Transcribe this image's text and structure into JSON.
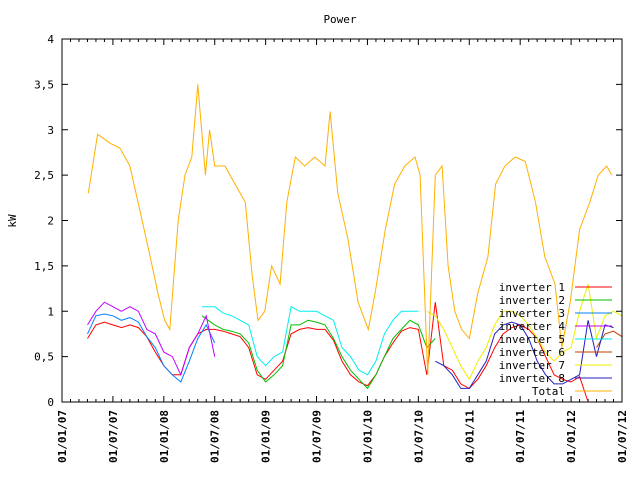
{
  "chart_data": {
    "type": "line",
    "title": "Power",
    "xlabel": "",
    "ylabel": "kW",
    "x_unit": "months since 01/01/07",
    "xlim": [
      0,
      66
    ],
    "ylim": [
      0,
      4
    ],
    "yticks": [
      {
        "v": 0,
        "label": "0"
      },
      {
        "v": 0.5,
        "label": "0,5"
      },
      {
        "v": 1,
        "label": "1"
      },
      {
        "v": 1.5,
        "label": "1,5"
      },
      {
        "v": 2,
        "label": "2"
      },
      {
        "v": 2.5,
        "label": "2,5"
      },
      {
        "v": 3,
        "label": "3"
      },
      {
        "v": 3.5,
        "label": "3,5"
      },
      {
        "v": 4,
        "label": "4"
      }
    ],
    "xticks": [
      {
        "v": 0,
        "label": "01/01/07"
      },
      {
        "v": 6,
        "label": "01/07/07"
      },
      {
        "v": 12,
        "label": "01/01/08"
      },
      {
        "v": 18,
        "label": "01/07/08"
      },
      {
        "v": 24,
        "label": "01/01/09"
      },
      {
        "v": 30,
        "label": "01/07/09"
      },
      {
        "v": 36,
        "label": "01/01/10"
      },
      {
        "v": 42,
        "label": "01/07/10"
      },
      {
        "v": 48,
        "label": "01/01/11"
      },
      {
        "v": 54,
        "label": "01/07/11"
      },
      {
        "v": 60,
        "label": "01/01/12"
      },
      {
        "v": 66,
        "label": "01/07/12"
      }
    ],
    "grid": false,
    "legend_position": "bottom-right",
    "series": [
      {
        "name": "inverter 1",
        "color": "#ff0000",
        "points": [
          [
            3,
            0.7
          ],
          [
            4,
            0.85
          ],
          [
            5,
            0.88
          ],
          [
            6,
            0.85
          ],
          [
            7,
            0.82
          ],
          [
            8,
            0.85
          ],
          [
            9,
            0.82
          ],
          [
            10,
            0.72
          ],
          [
            11,
            0.55
          ],
          [
            12,
            0.4
          ],
          [
            13,
            0.3
          ],
          [
            14,
            0.3
          ],
          [
            15,
            0.6
          ],
          [
            16,
            0.75
          ],
          [
            17,
            0.8
          ],
          [
            18,
            0.8
          ],
          [
            19,
            0.78
          ],
          [
            20,
            0.75
          ],
          [
            21,
            0.72
          ],
          [
            22,
            0.6
          ],
          [
            23,
            0.3
          ],
          [
            24,
            0.25
          ],
          [
            25,
            0.35
          ],
          [
            26,
            0.45
          ],
          [
            27,
            0.75
          ],
          [
            28,
            0.8
          ],
          [
            29,
            0.82
          ],
          [
            30,
            0.8
          ],
          [
            31,
            0.8
          ],
          [
            32,
            0.68
          ],
          [
            33,
            0.45
          ],
          [
            34,
            0.3
          ],
          [
            35,
            0.22
          ],
          [
            36,
            0.18
          ],
          [
            37,
            0.3
          ],
          [
            38,
            0.5
          ],
          [
            39,
            0.65
          ],
          [
            40,
            0.78
          ],
          [
            41,
            0.82
          ],
          [
            42,
            0.8
          ],
          [
            43,
            0.3
          ],
          [
            44,
            1.1
          ],
          [
            45,
            0.4
          ],
          [
            46,
            0.35
          ],
          [
            47,
            0.2
          ],
          [
            48,
            0.15
          ],
          [
            49,
            0.25
          ],
          [
            50,
            0.4
          ],
          [
            51,
            0.6
          ],
          [
            52,
            0.75
          ],
          [
            53,
            0.82
          ],
          [
            54,
            0.85
          ],
          [
            55,
            0.8
          ],
          [
            56,
            0.7
          ],
          [
            57,
            0.5
          ],
          [
            58,
            0.3
          ],
          [
            59,
            0.25
          ],
          [
            60,
            0.22
          ],
          [
            61,
            0.28
          ],
          [
            62,
            0.0
          ]
        ]
      },
      {
        "name": "inverter 2",
        "color": "#00c000",
        "points": [
          [
            16.5,
            0.95
          ],
          [
            18,
            0.85
          ],
          [
            19,
            0.8
          ],
          [
            20,
            0.78
          ],
          [
            21,
            0.75
          ],
          [
            22,
            0.65
          ],
          [
            23,
            0.35
          ],
          [
            24,
            0.22
          ],
          [
            25,
            0.3
          ],
          [
            26,
            0.4
          ],
          [
            27,
            0.85
          ],
          [
            28,
            0.85
          ],
          [
            29,
            0.9
          ],
          [
            30,
            0.88
          ],
          [
            31,
            0.85
          ],
          [
            32,
            0.7
          ],
          [
            33,
            0.5
          ],
          [
            34,
            0.35
          ],
          [
            35,
            0.25
          ],
          [
            36,
            0.15
          ],
          [
            37,
            0.3
          ],
          [
            38,
            0.5
          ],
          [
            39,
            0.7
          ],
          [
            40,
            0.8
          ],
          [
            41,
            0.9
          ],
          [
            42,
            0.85
          ],
          [
            43,
            0.6
          ],
          [
            44,
            0.7
          ]
        ]
      },
      {
        "name": "inverter 3",
        "color": "#0080ff",
        "points": [
          [
            3,
            0.75
          ],
          [
            4,
            0.95
          ],
          [
            5,
            0.97
          ],
          [
            6,
            0.95
          ],
          [
            7,
            0.9
          ],
          [
            8,
            0.93
          ],
          [
            9,
            0.88
          ],
          [
            10,
            0.72
          ],
          [
            11,
            0.6
          ],
          [
            12,
            0.4
          ],
          [
            13,
            0.3
          ],
          [
            14,
            0.22
          ],
          [
            15,
            0.45
          ],
          [
            16,
            0.7
          ],
          [
            17,
            0.85
          ],
          [
            18,
            0.65
          ]
        ]
      },
      {
        "name": "inverter 4",
        "color": "#c000ff",
        "points": [
          [
            3,
            0.85
          ],
          [
            4,
            1.0
          ],
          [
            5,
            1.1
          ],
          [
            6,
            1.05
          ],
          [
            7,
            1.0
          ],
          [
            8,
            1.05
          ],
          [
            9,
            1.0
          ],
          [
            10,
            0.8
          ],
          [
            11,
            0.75
          ],
          [
            12,
            0.55
          ],
          [
            13,
            0.5
          ],
          [
            14,
            0.3
          ],
          [
            15,
            0.6
          ],
          [
            16,
            0.75
          ],
          [
            17,
            0.95
          ],
          [
            18,
            0.5
          ]
        ]
      },
      {
        "name": "inverter 5",
        "color": "#00eeee",
        "points": [
          [
            16.5,
            1.05
          ],
          [
            18,
            1.05
          ],
          [
            19,
            0.98
          ],
          [
            20,
            0.95
          ],
          [
            21,
            0.9
          ],
          [
            22,
            0.85
          ],
          [
            23,
            0.5
          ],
          [
            24,
            0.4
          ],
          [
            25,
            0.5
          ],
          [
            26,
            0.55
          ],
          [
            27,
            1.05
          ],
          [
            28,
            1.0
          ],
          [
            29,
            1.0
          ],
          [
            30,
            1.0
          ],
          [
            31,
            0.95
          ],
          [
            32,
            0.9
          ],
          [
            33,
            0.6
          ],
          [
            34,
            0.5
          ],
          [
            35,
            0.35
          ],
          [
            36,
            0.3
          ],
          [
            37,
            0.45
          ],
          [
            38,
            0.75
          ],
          [
            39,
            0.9
          ],
          [
            40,
            1.0
          ],
          [
            41,
            1.0
          ],
          [
            42,
            1.0
          ]
        ]
      },
      {
        "name": "inverter 6",
        "color": "#c04000",
        "points": [
          [
            63,
            0.6
          ],
          [
            64,
            0.75
          ],
          [
            65,
            0.78
          ],
          [
            66,
            0.72
          ]
        ]
      },
      {
        "name": "inverter 7",
        "color": "#eeee00",
        "points": [
          [
            43,
            1.0
          ],
          [
            44,
            0.95
          ],
          [
            45,
            0.8
          ],
          [
            46,
            0.6
          ],
          [
            47,
            0.4
          ],
          [
            48,
            0.25
          ],
          [
            49,
            0.45
          ],
          [
            50,
            0.6
          ],
          [
            51,
            0.85
          ],
          [
            52,
            1.0
          ],
          [
            53,
            1.0
          ],
          [
            54,
            0.95
          ],
          [
            55,
            0.85
          ],
          [
            56,
            0.7
          ],
          [
            57,
            0.55
          ],
          [
            58,
            0.45
          ],
          [
            59,
            0.55
          ],
          [
            60,
            0.6
          ],
          [
            61,
            1.0
          ],
          [
            62,
            1.3
          ],
          [
            63,
            0.7
          ],
          [
            64,
            0.95
          ],
          [
            65,
            1.0
          ],
          [
            66,
            0.95
          ]
        ]
      },
      {
        "name": "inverter 8",
        "color": "#2020c0",
        "points": [
          [
            44,
            0.45
          ],
          [
            45,
            0.4
          ],
          [
            46,
            0.3
          ],
          [
            47,
            0.15
          ],
          [
            48,
            0.15
          ],
          [
            49,
            0.3
          ],
          [
            50,
            0.45
          ],
          [
            51,
            0.75
          ],
          [
            52,
            0.85
          ],
          [
            53,
            0.88
          ],
          [
            54,
            0.85
          ],
          [
            55,
            0.7
          ],
          [
            56,
            0.45
          ],
          [
            57,
            0.3
          ],
          [
            58,
            0.2
          ],
          [
            59,
            0.2
          ],
          [
            60,
            0.25
          ],
          [
            61,
            0.3
          ],
          [
            62,
            0.9
          ],
          [
            63,
            0.5
          ],
          [
            64,
            0.85
          ],
          [
            65,
            0.82
          ]
        ]
      },
      {
        "name": "Total",
        "color": "#ffb000",
        "points": [
          [
            3.1,
            2.3
          ],
          [
            4.2,
            2.95
          ],
          [
            5.7,
            2.85
          ],
          [
            6.8,
            2.8
          ],
          [
            8,
            2.6
          ],
          [
            9.2,
            2.1
          ],
          [
            10.4,
            1.6
          ],
          [
            11.3,
            1.2
          ],
          [
            12.1,
            0.9
          ],
          [
            12.7,
            0.8
          ],
          [
            13.7,
            2.0
          ],
          [
            14.5,
            2.5
          ],
          [
            15.3,
            2.7
          ],
          [
            16,
            3.5
          ],
          [
            16.9,
            2.5
          ],
          [
            17.4,
            3.0
          ],
          [
            18,
            2.6
          ],
          [
            19.2,
            2.6
          ],
          [
            20.4,
            2.4
          ],
          [
            21.6,
            2.2
          ],
          [
            22.4,
            1.4
          ],
          [
            23.1,
            0.9
          ],
          [
            23.9,
            1.0
          ],
          [
            24.7,
            1.5
          ],
          [
            25.7,
            1.3
          ],
          [
            26.5,
            2.2
          ],
          [
            27.5,
            2.7
          ],
          [
            28.6,
            2.6
          ],
          [
            29.8,
            2.7
          ],
          [
            31,
            2.6
          ],
          [
            31.6,
            3.2
          ],
          [
            32.5,
            2.3
          ],
          [
            33.7,
            1.8
          ],
          [
            34.9,
            1.1
          ],
          [
            36.1,
            0.8
          ],
          [
            36.9,
            1.2
          ],
          [
            38.1,
            1.9
          ],
          [
            39.2,
            2.4
          ],
          [
            40.4,
            2.6
          ],
          [
            41.6,
            2.7
          ],
          [
            42.2,
            2.5
          ],
          [
            43.1,
            0.3
          ],
          [
            44,
            2.5
          ],
          [
            44.8,
            2.6
          ],
          [
            45.5,
            1.5
          ],
          [
            46.3,
            1.0
          ],
          [
            47.1,
            0.8
          ],
          [
            48,
            0.7
          ],
          [
            49,
            1.2
          ],
          [
            50.2,
            1.6
          ],
          [
            51.1,
            2.4
          ],
          [
            52.2,
            2.6
          ],
          [
            53.4,
            2.7
          ],
          [
            54.6,
            2.65
          ],
          [
            55.8,
            2.2
          ],
          [
            56.9,
            1.6
          ],
          [
            58.1,
            1.3
          ],
          [
            58.9,
            0.6
          ],
          [
            59.9,
            1.1
          ],
          [
            61,
            1.9
          ],
          [
            62.2,
            2.2
          ],
          [
            63.2,
            2.5
          ],
          [
            64.2,
            2.6
          ],
          [
            64.8,
            2.5
          ]
        ]
      }
    ]
  }
}
